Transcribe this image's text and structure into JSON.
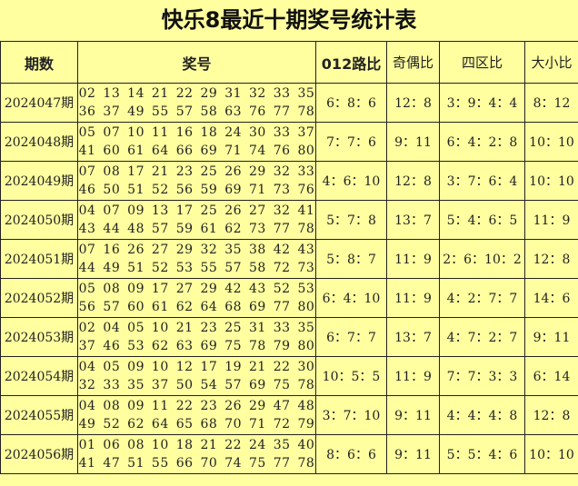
{
  "title": "快乐8最近十期奖号统计表",
  "headers": [
    "期数",
    "奖号",
    "012路比",
    "奇偶比",
    "四区比",
    "大小比"
  ],
  "rows": [
    {
      "period": "2024047期",
      "line1": "02 13 14 21 22 29 31 32 33 35",
      "line2": "36 37 49 55 57 58 63 76 77 78",
      "r012": "6：8：6",
      "odd_even": "12：8",
      "zones": "3：9：4：4",
      "big_small": "8：12"
    },
    {
      "period": "2024048期",
      "line1": "05 07 10 11 16 18 24 30 33 37",
      "line2": "41 60 61 64 66 69 71 74 76 80",
      "r012": "7：7：6",
      "odd_even": "9：11",
      "zones": "6：4：2：8",
      "big_small": "10：10"
    },
    {
      "period": "2024049期",
      "line1": "07 08 17 21 23 25 26 29 32 33",
      "line2": "46 50 51 52 56 59 69 71 73 76",
      "r012": "4：6：10",
      "odd_even": "12：8",
      "zones": "3：7：6：4",
      "big_small": "10：10"
    },
    {
      "period": "2024050期",
      "line1": "04 07 09 13 17 25 26 27 32 41",
      "line2": "43 44 48 57 59 61 62 73 77 78",
      "r012": "5：7：8",
      "odd_even": "13：7",
      "zones": "5：4：6：5",
      "big_small": "11：9"
    },
    {
      "period": "2024051期",
      "line1": "07 16 26 27 29 32 35 38 42 43",
      "line2": "44 49 51 52 53 55 57 58 72 73",
      "r012": "5：8：7",
      "odd_even": "11：9",
      "zones": "2：6：10：2",
      "big_small": "12：8"
    },
    {
      "period": "2024052期",
      "line1": "05 08 09 17 27 29 42 43 52 53",
      "line2": "56 57 60 61 62 64 68 69 77 80",
      "r012": "6：4：10",
      "odd_even": "11：9",
      "zones": "4：2：7：7",
      "big_small": "14：6"
    },
    {
      "period": "2024053期",
      "line1": "02 04 05 10 21 23 25 31 33 35",
      "line2": "37 46 53 62 63 69 75 78 79 80",
      "r012": "6：7：7",
      "odd_even": "13：7",
      "zones": "4：7：2：7",
      "big_small": "9：11"
    },
    {
      "period": "2024054期",
      "line1": "04 05 09 10 12 17 19 21 22 30",
      "line2": "32 33 35 37 50 54 57 69 75 78",
      "r012": "10：5：5",
      "odd_even": "11：9",
      "zones": "7：7：3：3",
      "big_small": "6：14"
    },
    {
      "period": "2024055期",
      "line1": "04 08 09 11 22 23 26 29 47 48",
      "line2": "49 52 62 64 65 68 70 71 72 79",
      "r012": "3：7：10",
      "odd_even": "9：11",
      "zones": "4：4：4：8",
      "big_small": "12：8"
    },
    {
      "period": "2024056期",
      "line1": "01 06 08 10 18 21 22 24 35 40",
      "line2": "41 47 51 55 66 70 74 75 77 78",
      "r012": "8：6：6",
      "odd_even": "9：11",
      "zones": "5：5：4：6",
      "big_small": "10：10"
    }
  ]
}
